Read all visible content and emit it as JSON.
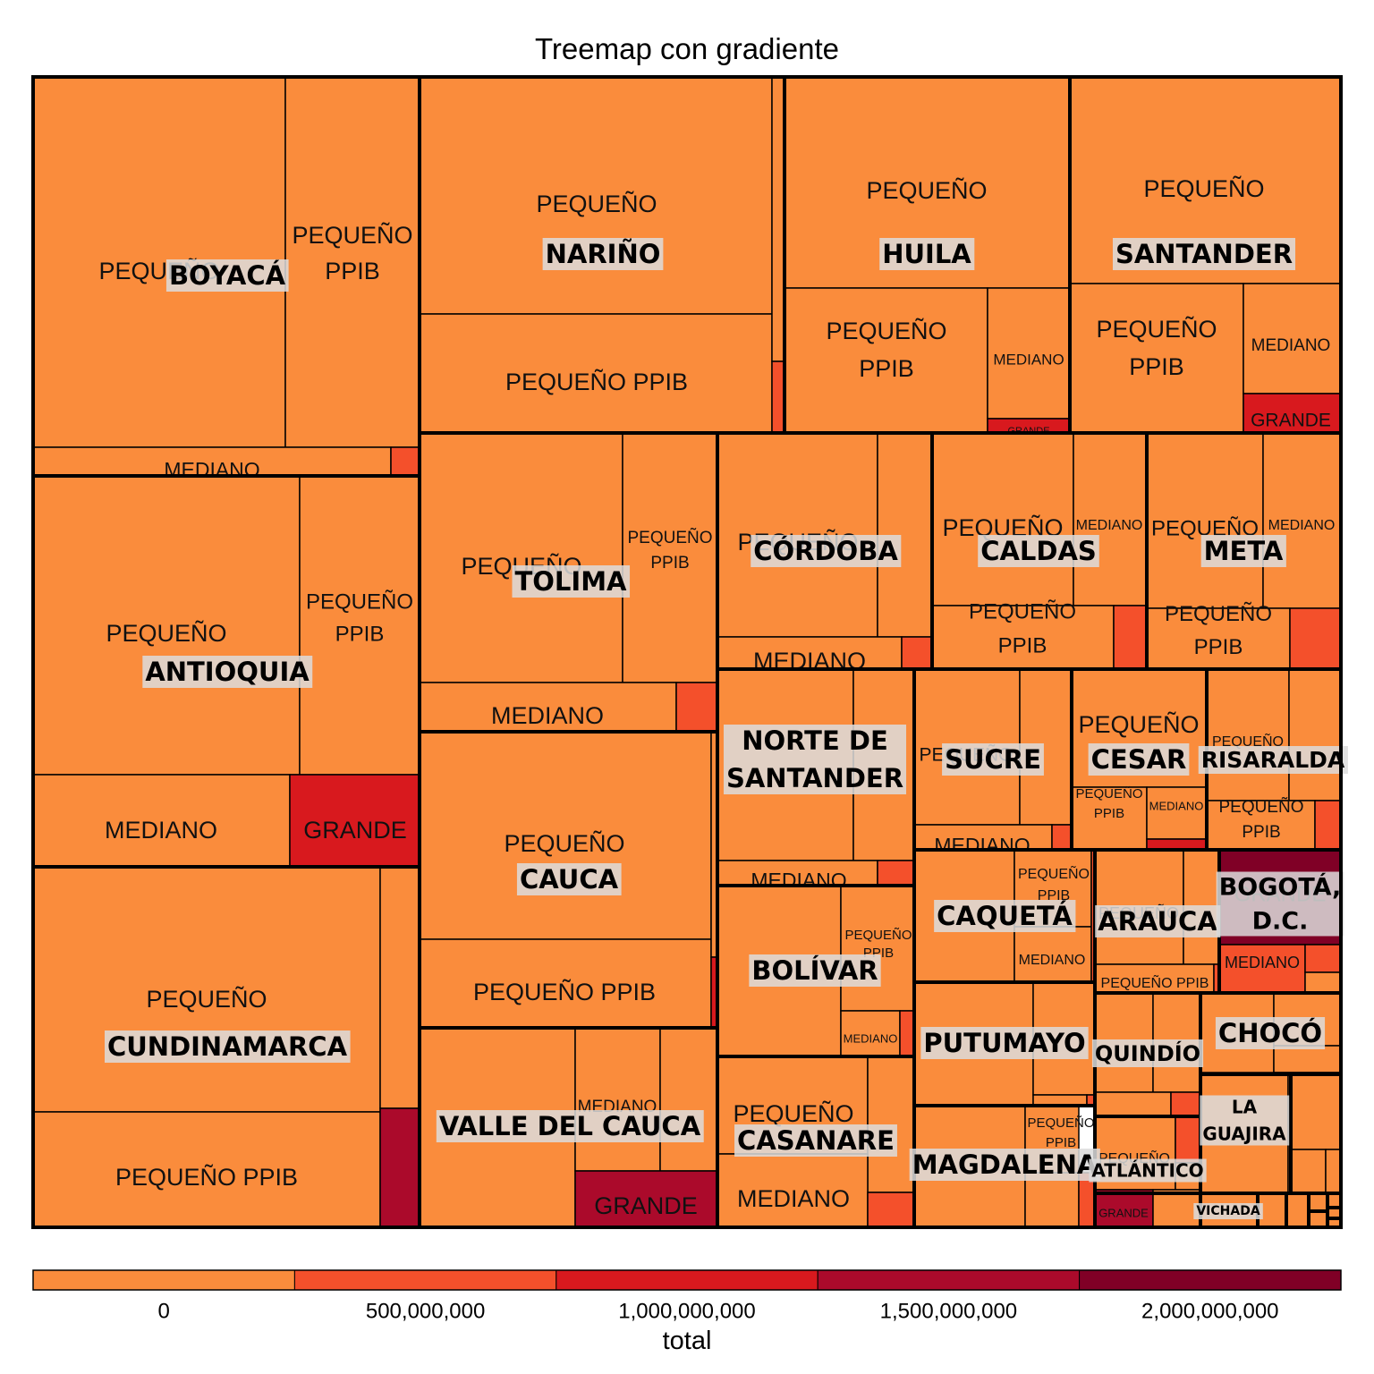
{
  "chart_data": {
    "type": "treemap",
    "title": "Treemap con gradiente",
    "legend": {
      "title": "total",
      "position": "bottom",
      "ticks": [
        {
          "value": 0,
          "label": "0"
        },
        {
          "value": 500000000,
          "label": "500,000,000"
        },
        {
          "value": 1000000000,
          "label": "1,000,000,000"
        },
        {
          "value": 1500000000,
          "label": "1,500,000,000"
        },
        {
          "value": 2000000000,
          "label": "2,000,000,000"
        }
      ],
      "range": [
        -250000000,
        2250000000
      ],
      "bins": [
        "#fa8c3c",
        "#f4502b",
        "#d8191e",
        "#ab0a2b",
        "#800026"
      ]
    },
    "groups": [
      {
        "name": "BOYACÁ",
        "label_lines": [
          "BOYACÁ"
        ]
      },
      {
        "name": "ANTIOQUIA",
        "label_lines": [
          "ANTIOQUIA"
        ]
      },
      {
        "name": "CUNDINAMARCA",
        "label_lines": [
          "CUNDINAMARCA"
        ]
      },
      {
        "name": "NARIÑO",
        "label_lines": [
          "NARIÑO"
        ]
      },
      {
        "name": "HUILA",
        "label_lines": [
          "HUILA"
        ]
      },
      {
        "name": "SANTANDER",
        "label_lines": [
          "SANTANDER"
        ]
      },
      {
        "name": "TOLIMA",
        "label_lines": [
          "TOLIMA"
        ]
      },
      {
        "name": "CÓRDOBA",
        "label_lines": [
          "CÓRDOBA"
        ]
      },
      {
        "name": "CALDAS",
        "label_lines": [
          "CALDAS"
        ]
      },
      {
        "name": "META",
        "label_lines": [
          "META"
        ]
      },
      {
        "name": "CAUCA",
        "label_lines": [
          "CAUCA"
        ]
      },
      {
        "name": "NORTE DE SANTANDER",
        "label_lines": [
          "NORTE DE",
          "SANTANDER"
        ]
      },
      {
        "name": "SUCRE",
        "label_lines": [
          "SUCRE"
        ]
      },
      {
        "name": "CESAR",
        "label_lines": [
          "CESAR"
        ]
      },
      {
        "name": "RISARALDA",
        "label_lines": [
          "RISARALDA"
        ]
      },
      {
        "name": "VALLE DEL CAUCA",
        "label_lines": [
          "VALLE DEL CAUCA"
        ]
      },
      {
        "name": "BOLÍVAR",
        "label_lines": [
          "BOLÍVAR"
        ]
      },
      {
        "name": "CAQUETÁ",
        "label_lines": [
          "CAQUETÁ"
        ]
      },
      {
        "name": "ARAUCA",
        "label_lines": [
          "ARAUCA"
        ]
      },
      {
        "name": "BOGOTÁ, D.C.",
        "label_lines": [
          "BOGOTÁ,",
          "D.C."
        ]
      },
      {
        "name": "CASANARE",
        "label_lines": [
          "CASANARE"
        ]
      },
      {
        "name": "PUTUMAYO",
        "label_lines": [
          "PUTUMAYO"
        ]
      },
      {
        "name": "QUINDÍO",
        "label_lines": [
          "QUINDÍO"
        ]
      },
      {
        "name": "CHOCÓ",
        "label_lines": [
          "CHOCÓ"
        ]
      },
      {
        "name": "MAGDALENA",
        "label_lines": [
          "MAGDALENA"
        ]
      },
      {
        "name": "ATLÁNTICO",
        "label_lines": [
          "ATLÁNTICO"
        ]
      },
      {
        "name": "LA GUAJIRA",
        "label_lines": [
          "LA",
          "GUAJIRA"
        ]
      },
      {
        "name": "VICHADA",
        "label_lines": [
          "VICHADA"
        ]
      },
      {
        "name": "",
        "label_lines": []
      },
      {
        "name": "",
        "label_lines": []
      },
      {
        "name": "",
        "label_lines": []
      },
      {
        "name": "",
        "label_lines": []
      },
      {
        "name": "",
        "label_lines": []
      },
      {
        "name": "",
        "label_lines": []
      },
      {
        "name": "",
        "label_lines": []
      },
      {
        "name": "",
        "label_lines": []
      }
    ],
    "sub_labels": {
      "pequeno": [
        "PEQUEÑO"
      ],
      "pequeno_ppib": [
        "PEQUEÑO",
        "PPIB"
      ],
      "pequeno_ppib_1line": [
        "PEQUEÑO PPIB"
      ],
      "mediano": [
        "MEDIANO"
      ],
      "grande": [
        "GRANDE"
      ]
    }
  }
}
